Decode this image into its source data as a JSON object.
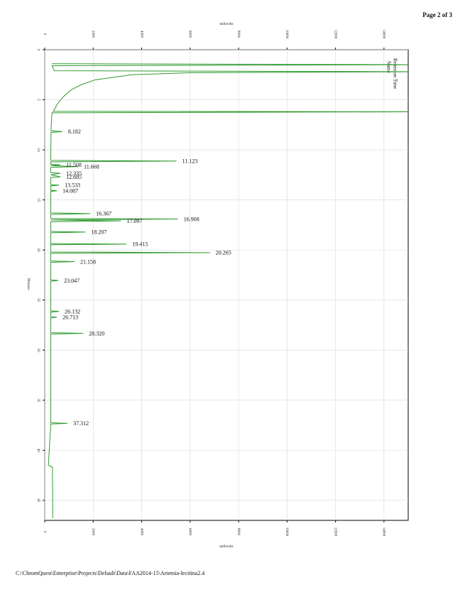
{
  "header": "Page 2 of 3",
  "footer": "C:\\ChromQuest\\Enterprise\\Projects\\Default\\Data\\FAA2014-15\\Artemia-lecitina2.4",
  "chart_data": {
    "type": "line",
    "x_label": "millivolts",
    "y_label": "Minutes",
    "legend": [
      "Retention Time",
      "Name"
    ],
    "grid": true,
    "xlim": [
      0,
      15000
    ],
    "xticks": [
      0,
      2000,
      4000,
      6000,
      8000,
      10000,
      12000,
      14000
    ],
    "ylim": [
      0,
      47
    ],
    "yticks": [
      0,
      5,
      10,
      15,
      20,
      25,
      30,
      35,
      40,
      45
    ],
    "series": [
      {
        "name": "Artemia-lecitina2.4",
        "color": "#2e9a2e",
        "x": [
          1.4,
          1.5,
          1.6,
          2.1,
          2.2,
          2.3,
          2.5,
          3.0,
          3.5,
          4.0,
          4.5,
          5.0,
          5.5,
          6.0,
          6.15,
          6.2,
          6.3,
          7.0,
          8.1,
          8.182,
          8.26,
          10.5,
          11.05,
          11.123,
          11.2,
          11.45,
          11.508,
          11.58,
          11.668,
          11.75,
          12.28,
          12.335,
          12.5,
          12.685,
          12.76,
          13.48,
          13.533,
          13.6,
          14.03,
          14.087,
          14.15,
          16.3,
          16.367,
          16.45,
          16.85,
          16.908,
          17.0,
          17.097,
          17.18,
          18.15,
          18.207,
          18.28,
          19.36,
          19.415,
          19.48,
          20.2,
          20.265,
          20.33,
          21.1,
          21.158,
          21.23,
          22.99,
          23.047,
          23.12,
          26.08,
          26.132,
          26.2,
          26.66,
          26.713,
          26.78,
          28.26,
          28.32,
          28.4,
          37.25,
          37.312,
          37.38,
          41.5,
          41.7,
          46.8
        ],
        "values": [
          300,
          15500,
          300,
          400,
          15500,
          6000,
          3600,
          2100,
          1500,
          1100,
          850,
          650,
          500,
          400,
          350,
          15500,
          300,
          280,
          260,
          730,
          260,
          250,
          250,
          5440,
          250,
          250,
          650,
          250,
          1380,
          250,
          250,
          650,
          250,
          650,
          250,
          250,
          590,
          250,
          250,
          500,
          250,
          250,
          1880,
          250,
          250,
          5500,
          250,
          3150,
          250,
          250,
          1680,
          250,
          250,
          3380,
          250,
          250,
          6820,
          250,
          250,
          1230,
          250,
          250,
          560,
          250,
          250,
          590,
          250,
          250,
          500,
          250,
          250,
          1590,
          250,
          250,
          940,
          250,
          150,
          320,
          330
        ]
      }
    ],
    "peak_times": [
      8.182,
      11.123,
      11.508,
      11.668,
      12.335,
      12.685,
      13.533,
      14.087,
      16.367,
      16.908,
      17.097,
      18.207,
      19.415,
      20.265,
      21.158,
      23.047,
      26.132,
      26.713,
      28.32,
      37.312
    ],
    "peak_time_labels": [
      "8.182",
      "11.123",
      "11.508",
      "11.668",
      "12.335",
      "12.685",
      "13.533",
      "14.087",
      "16.367",
      "16.908",
      "17.097",
      "18.207",
      "19.415",
      "20.265",
      "21.158",
      "23.047",
      "26.132",
      "26.713",
      "28.320",
      "37.312"
    ]
  }
}
